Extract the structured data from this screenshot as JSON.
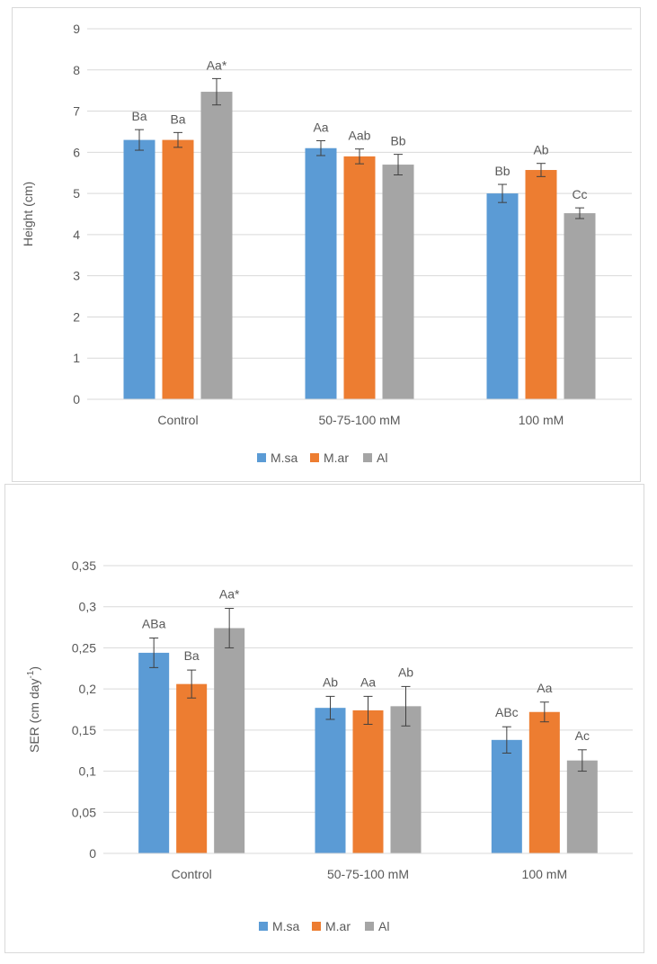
{
  "chart_data": [
    {
      "type": "bar",
      "title": "",
      "xlabel": "",
      "ylabel": "Height (cm)",
      "ylim": [
        0,
        9
      ],
      "yticks": [
        "0",
        "1",
        "2",
        "3",
        "4",
        "5",
        "6",
        "7",
        "8",
        "9"
      ],
      "grid": true,
      "legend_position": "bottom",
      "categories": [
        "Control",
        "50-75-100 mM",
        "100 mM"
      ],
      "series": [
        {
          "name": "M.sa",
          "color": "#5b9bd5",
          "values": [
            6.3,
            6.1,
            5.0
          ],
          "errors": [
            0.25,
            0.18,
            0.22
          ],
          "labels": [
            "Ba",
            "Aa",
            "Bb"
          ]
        },
        {
          "name": "M.ar",
          "color": "#ed7d31",
          "values": [
            6.3,
            5.9,
            5.57
          ],
          "errors": [
            0.18,
            0.18,
            0.16
          ],
          "labels": [
            "Ba",
            "Aab",
            "Ab"
          ]
        },
        {
          "name": "Al",
          "color": "#a5a5a5",
          "values": [
            7.47,
            5.7,
            4.52
          ],
          "errors": [
            0.32,
            0.25,
            0.13
          ],
          "labels": [
            "Aa*",
            "Bb",
            "Cc"
          ]
        }
      ]
    },
    {
      "type": "bar",
      "title": "",
      "xlabel": "",
      "ylabel": "SER (cm day",
      "ylabel_sup": "-1",
      "ylabel_end": ")",
      "ylim": [
        0,
        0.35
      ],
      "yticks": [
        "0",
        "0,05",
        "0,1",
        "0,15",
        "0,2",
        "0,25",
        "0,3",
        "0,35"
      ],
      "grid": true,
      "legend_position": "bottom",
      "categories": [
        "Control",
        "50-75-100 mM",
        "100 mM"
      ],
      "series": [
        {
          "name": "M.sa",
          "color": "#5b9bd5",
          "values": [
            0.244,
            0.177,
            0.138
          ],
          "errors": [
            0.018,
            0.014,
            0.016
          ],
          "labels": [
            "ABa",
            "Ab",
            "ABc"
          ]
        },
        {
          "name": "M.ar",
          "color": "#ed7d31",
          "values": [
            0.206,
            0.174,
            0.172
          ],
          "errors": [
            0.017,
            0.017,
            0.012
          ],
          "labels": [
            "Ba",
            "Aa",
            "Aa"
          ]
        },
        {
          "name": "Al",
          "color": "#a5a5a5",
          "values": [
            0.274,
            0.179,
            0.113
          ],
          "errors": [
            0.024,
            0.024,
            0.013
          ],
          "labels": [
            "Aa*",
            "Ab",
            "Ac"
          ]
        }
      ]
    }
  ]
}
